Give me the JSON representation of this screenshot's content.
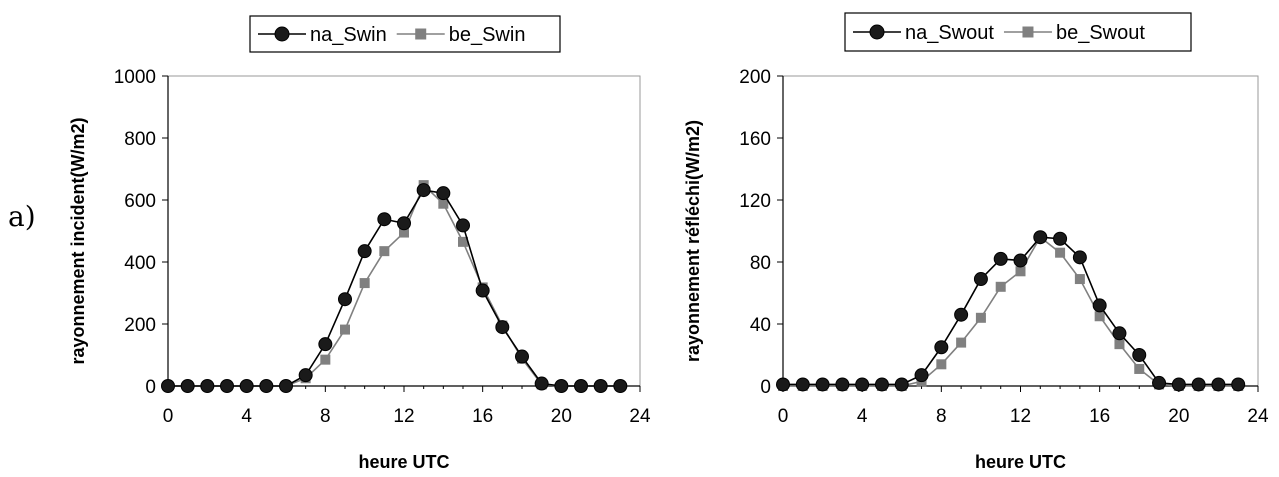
{
  "panel_label": "a)",
  "chart_data": [
    {
      "type": "line",
      "title": "",
      "xlabel": "heure UTC",
      "ylabel": "rayonnement incident(W/m2)",
      "xlim": [
        0,
        24
      ],
      "ylim": [
        0,
        1000
      ],
      "xticks": [
        0,
        4,
        8,
        12,
        16,
        20,
        24
      ],
      "yticks": [
        0,
        200,
        400,
        600,
        800,
        1000
      ],
      "grid": false,
      "legend_placement": "top-center",
      "x": [
        0,
        1,
        2,
        3,
        4,
        5,
        6,
        7,
        8,
        9,
        10,
        11,
        12,
        13,
        14,
        15,
        16,
        17,
        18,
        19,
        20,
        21,
        22,
        23
      ],
      "series": [
        {
          "name": "na_Swin",
          "marker": "circle",
          "color": "#000000",
          "values": [
            0,
            0,
            0,
            0,
            0,
            0,
            0,
            35,
            135,
            280,
            435,
            538,
            525,
            632,
            622,
            518,
            308,
            190,
            95,
            8,
            0,
            0,
            0,
            0
          ]
        },
        {
          "name": "be_Swin",
          "marker": "square",
          "color": "#808080",
          "values": [
            0,
            0,
            0,
            0,
            0,
            0,
            0,
            25,
            85,
            182,
            332,
            435,
            495,
            648,
            588,
            465,
            318,
            195,
            88,
            5,
            0,
            0,
            0,
            0
          ]
        }
      ]
    },
    {
      "type": "line",
      "title": "",
      "xlabel": "heure UTC",
      "ylabel": "rayonnement réfléchi(W/m2)",
      "xlim": [
        0,
        24
      ],
      "ylim": [
        0,
        200
      ],
      "xticks": [
        0,
        4,
        8,
        12,
        16,
        20,
        24
      ],
      "yticks": [
        0,
        40,
        80,
        120,
        160,
        200
      ],
      "grid": false,
      "legend_placement": "top-center",
      "x": [
        0,
        1,
        2,
        3,
        4,
        5,
        6,
        7,
        8,
        9,
        10,
        11,
        12,
        13,
        14,
        15,
        16,
        17,
        18,
        19,
        20,
        21,
        22,
        23
      ],
      "series": [
        {
          "name": "na_Swout",
          "marker": "circle",
          "color": "#000000",
          "values": [
            1,
            1,
            1,
            1,
            1,
            1,
            1,
            7,
            25,
            46,
            69,
            82,
            81,
            96,
            95,
            83,
            52,
            34,
            20,
            2,
            1,
            1,
            1,
            1
          ]
        },
        {
          "name": "be_Swout",
          "marker": "square",
          "color": "#808080",
          "values": [
            0,
            0,
            0,
            0,
            0,
            0,
            0,
            3,
            14,
            28,
            44,
            64,
            74,
            96,
            86,
            69,
            45,
            27,
            11,
            1,
            0,
            0,
            0,
            0
          ]
        }
      ]
    }
  ]
}
